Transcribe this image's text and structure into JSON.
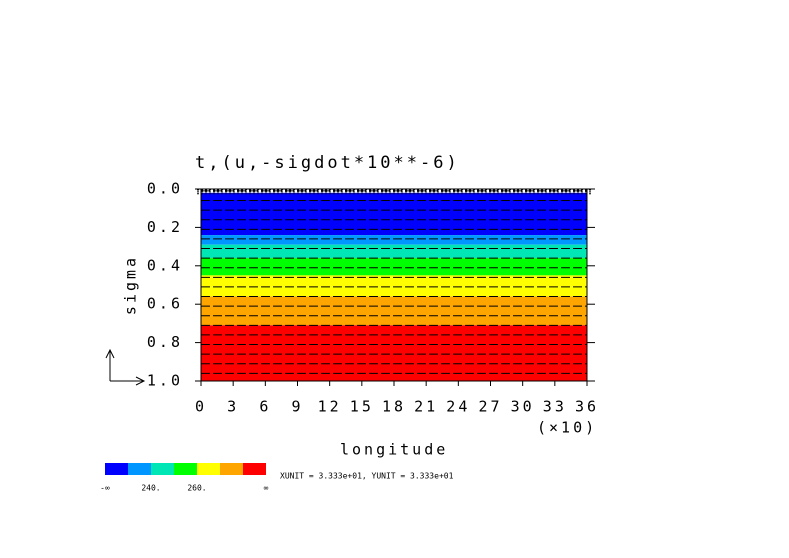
{
  "chart_data": {
    "type": "contour",
    "title": "t,(u,-sigdot*10**-6)",
    "x_label": "longitude",
    "x_multiplier": "(×10)",
    "y_label": "sigma",
    "xlim": [
      0,
      36
    ],
    "xticks": [
      0,
      3,
      6,
      9,
      12,
      15,
      18,
      21,
      24,
      27,
      30,
      33,
      36
    ],
    "ylim": [
      0,
      1
    ],
    "yticks": [
      {
        "value": 0,
        "label": "0.0"
      },
      0.2,
      0.4,
      0.6,
      0.8,
      {
        "value": 1,
        "label": "1.0"
      }
    ],
    "bands": [
      {
        "color": "#0000ff",
        "top": 0.02,
        "bottom": 0.24
      },
      {
        "color": "#0096ff",
        "top": 0.24,
        "bottom": 0.29
      },
      {
        "color": "#00e6b4",
        "top": 0.29,
        "bottom": 0.36
      },
      {
        "color": "#00ff00",
        "top": 0.36,
        "bottom": 0.45
      },
      {
        "color": "#ffff00",
        "top": 0.45,
        "bottom": 0.56
      },
      {
        "color": "#ffa500",
        "top": 0.56,
        "bottom": 0.71
      },
      {
        "color": "#ff0000",
        "top": 0.71,
        "bottom": 1.0
      }
    ],
    "colorbar_labels": [
      "-∞",
      {
        "value": 240,
        "label": "240."
      },
      {
        "value": 260,
        "label": "260."
      },
      "∞"
    ],
    "vector_unit": "XUNIT = 3.333e+01, YUNIT = 3.333e+01"
  }
}
